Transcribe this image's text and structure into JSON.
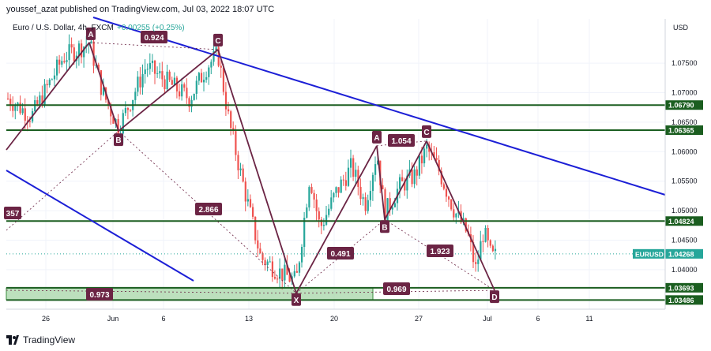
{
  "header": {
    "published_text": "youssef_azat published on TradingView.com, Jul 03, 2022 18:07 UTC"
  },
  "footer": {
    "brand": "TradingView"
  },
  "chart_data": {
    "type": "candlestick",
    "symbol_label": "Euro / U.S. Dollar, 4h, FXCM",
    "change_text": "+0.00255 (+0.25%)",
    "currency": "USD",
    "ylim": [
      1.0333,
      1.0825
    ],
    "y_ticks": [
      {
        "value": 1.075,
        "label": "1.07500"
      },
      {
        "value": 1.07,
        "label": "1.07000"
      },
      {
        "value": 1.065,
        "label": "1.06500"
      },
      {
        "value": 1.06,
        "label": "1.06000"
      },
      {
        "value": 1.055,
        "label": "1.05500"
      },
      {
        "value": 1.05,
        "label": "1.05000"
      },
      {
        "value": 1.045,
        "label": "1.04500"
      },
      {
        "value": 1.04,
        "label": "1.04000"
      }
    ],
    "x_ticks": [
      "26",
      "Jun",
      "6",
      "13",
      "20",
      "27",
      "Jul",
      "6",
      "11"
    ],
    "last_price": {
      "label": "EURUSD",
      "value": "1.04268",
      "num": 1.04268,
      "color": "#26a69a"
    },
    "horizontal_levels": [
      {
        "value": 1.0679,
        "label": "1.06790"
      },
      {
        "value": 1.06365,
        "label": "1.06365"
      },
      {
        "value": 1.04824,
        "label": "1.04824"
      },
      {
        "value": 1.03693,
        "label": "1.03693"
      },
      {
        "value": 1.03486,
        "label": "1.03486"
      }
    ],
    "support_zone": {
      "top": 1.0369,
      "bottom": 1.0349
    },
    "pattern_points": [
      {
        "label": "A",
        "value": 1.0785
      },
      {
        "label": "B",
        "value": 1.0635
      },
      {
        "label": "C",
        "value": 1.0773
      },
      {
        "label": "X",
        "value": 1.036
      },
      {
        "label": "A",
        "value": 1.061
      },
      {
        "label": "B",
        "value": 1.0485
      },
      {
        "label": "C",
        "value": 1.0618
      },
      {
        "label": "D",
        "value": 1.0365
      }
    ],
    "ratios": [
      "0.924",
      "2.866",
      "357",
      "0.973",
      "0.491",
      "1.054",
      "1.923",
      "0.969"
    ],
    "colors": {
      "up": "#26a69a",
      "down": "#ef5350",
      "level": "#1b5e20",
      "trendline": "#1c1fd6",
      "pattern": "#6b2444",
      "badge": "#6b2444",
      "zone": "#a5d6a7"
    }
  }
}
